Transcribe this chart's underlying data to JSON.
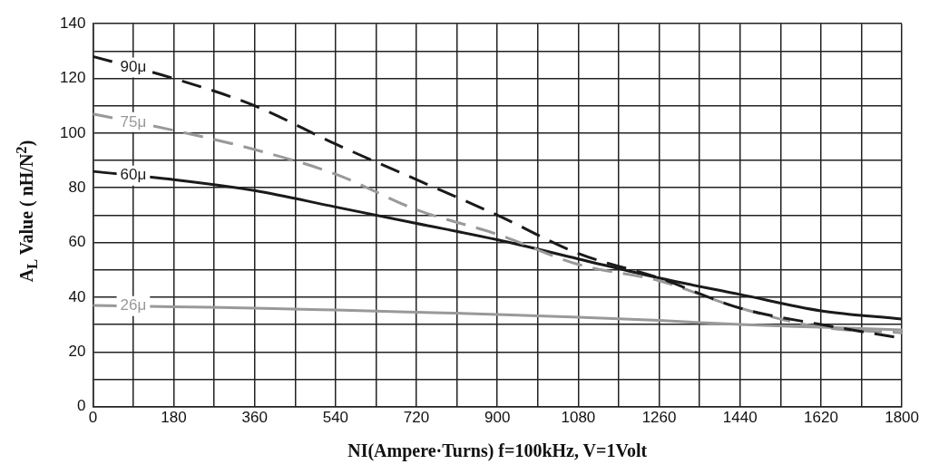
{
  "chart_data": {
    "type": "line",
    "xlabel": "NI(Ampere·Turns) f=100kHz, V=1Volt",
    "ylabel": "A$_{L}$ Value ( nH/N$^{2}$)",
    "x": [
      0,
      180,
      360,
      540,
      720,
      900,
      1080,
      1260,
      1440,
      1620,
      1800
    ],
    "series": [
      {
        "name": "90μ",
        "color": "#1a1a1a",
        "line_style": "dashed",
        "values": [
          128,
          120,
          110,
          96,
          83,
          70,
          56,
          47,
          36,
          30,
          25
        ]
      },
      {
        "name": "75μ",
        "color": "#999999",
        "line_style": "dashed",
        "values": [
          107,
          101,
          94,
          85,
          72,
          63,
          52,
          46,
          36,
          29,
          27
        ]
      },
      {
        "name": "60μ",
        "color": "#1a1a1a",
        "line_style": "solid",
        "values": [
          86,
          83,
          79,
          73,
          67,
          61,
          54,
          47,
          41,
          35,
          32
        ]
      },
      {
        "name": "26μ",
        "color": "#999999",
        "line_style": "solid",
        "values": [
          37,
          36.5,
          36,
          35.3,
          34.5,
          33.7,
          32.7,
          31.5,
          30,
          29,
          28
        ]
      }
    ],
    "xlim": [
      0,
      1800
    ],
    "xticks": [
      0,
      {
        "value": 90,
        "label": null
      },
      180,
      {
        "value": 270,
        "label": null
      },
      360,
      {
        "value": 450,
        "label": null
      },
      540,
      {
        "value": 630,
        "label": null
      },
      720,
      {
        "value": 810,
        "label": null
      },
      900,
      {
        "value": 990,
        "label": null
      },
      1080,
      {
        "value": 1170,
        "label": null
      },
      1260,
      {
        "value": 1350,
        "label": null
      },
      1440,
      {
        "value": 1530,
        "label": null
      },
      1620,
      {
        "value": 1710,
        "label": null
      },
      1800
    ],
    "ylim": [
      0,
      140
    ],
    "yticks": [
      0,
      {
        "value": 10,
        "label": null
      },
      20,
      {
        "value": 30,
        "label": null
      },
      40,
      {
        "value": 50,
        "label": null
      },
      60,
      {
        "value": 70,
        "label": null
      },
      80,
      {
        "value": 90,
        "label": null
      },
      100,
      {
        "value": 110,
        "label": null
      },
      120,
      {
        "value": 130,
        "label": null
      },
      140
    ],
    "grid": true,
    "legend": false,
    "marker": "none"
  }
}
